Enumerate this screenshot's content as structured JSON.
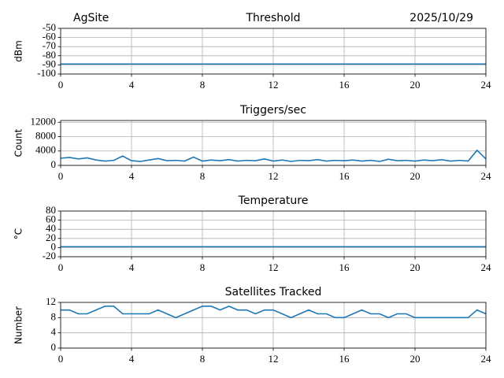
{
  "chart_data": [
    {
      "type": "line",
      "title": "Threshold",
      "left_title": "AgSite",
      "right_title": "2025/10/29",
      "ylabel": "dBm",
      "x": [
        0,
        1,
        2,
        3,
        4,
        5,
        6,
        7,
        8,
        9,
        10,
        11,
        12,
        13,
        14,
        15,
        16,
        17,
        18,
        19,
        20,
        21,
        22,
        23,
        24
      ],
      "series": [
        {
          "color": "#1f77b4",
          "values": [
            -89,
            -89,
            -89,
            -89,
            -89,
            -89,
            -89,
            -89,
            -89,
            -89,
            -89,
            -89,
            -89,
            -89,
            -89,
            -89,
            -89,
            -89,
            -89,
            -89,
            -89,
            -89,
            -89,
            -89,
            -89
          ]
        }
      ],
      "xlim": [
        0,
        24
      ],
      "xticks": [
        0,
        4,
        8,
        12,
        16,
        20,
        24
      ],
      "ylim": [
        -100,
        -50
      ],
      "yticks": [
        -100,
        -90,
        -80,
        -70,
        -60,
        -50
      ],
      "grid": true
    },
    {
      "type": "line",
      "title": "Triggers/sec",
      "ylabel": "Count",
      "x": [
        0,
        0.5,
        1,
        1.5,
        2,
        2.5,
        3,
        3.5,
        4,
        4.5,
        5,
        5.5,
        6,
        6.5,
        7,
        7.5,
        8,
        8.5,
        9,
        9.5,
        10,
        10.5,
        11,
        11.5,
        12,
        12.5,
        13,
        13.5,
        14,
        14.5,
        15,
        15.5,
        16,
        16.5,
        17,
        17.5,
        18,
        18.5,
        19,
        19.5,
        20,
        20.5,
        21,
        21.5,
        22,
        22.5,
        23,
        23.5,
        24
      ],
      "series": [
        {
          "color": "#1f77b4",
          "values": [
            2000,
            2200,
            1800,
            2100,
            1500,
            1200,
            1400,
            2600,
            1300,
            1100,
            1500,
            1900,
            1300,
            1400,
            1200,
            2300,
            1200,
            1500,
            1300,
            1600,
            1200,
            1400,
            1300,
            1800,
            1200,
            1500,
            1100,
            1400,
            1300,
            1600,
            1200,
            1400,
            1300,
            1500,
            1200,
            1400,
            1100,
            1700,
            1300,
            1400,
            1200,
            1500,
            1300,
            1600,
            1200,
            1400,
            1200,
            4200,
            1800
          ]
        }
      ],
      "xlim": [
        0,
        24
      ],
      "xticks": [
        0,
        4,
        8,
        12,
        16,
        20,
        24
      ],
      "ylim": [
        0,
        12500
      ],
      "yticks": [
        0,
        4000,
        8000,
        12000
      ],
      "grid": true
    },
    {
      "type": "line",
      "title": "Temperature",
      "ylabel": "°C",
      "x": [
        0,
        1,
        2,
        3,
        4,
        5,
        6,
        7,
        8,
        9,
        10,
        11,
        12,
        13,
        14,
        15,
        16,
        17,
        18,
        19,
        20,
        21,
        22,
        23,
        24
      ],
      "series": [
        {
          "color": "#1f77b4",
          "values": [
            2,
            2,
            2,
            2,
            2,
            2,
            2,
            2,
            2,
            2,
            2,
            2,
            2,
            2,
            2,
            2,
            2,
            2,
            2,
            2,
            2,
            2,
            2,
            2,
            2
          ]
        }
      ],
      "xlim": [
        0,
        24
      ],
      "xticks": [
        0,
        4,
        8,
        12,
        16,
        20,
        24
      ],
      "ylim": [
        -20,
        80
      ],
      "yticks": [
        -20,
        0,
        20,
        40,
        60,
        80
      ],
      "grid": true
    },
    {
      "type": "line",
      "title": "Satellites Tracked",
      "ylabel": "Number",
      "x": [
        0,
        0.5,
        1,
        1.5,
        2,
        2.5,
        3,
        3.5,
        4,
        4.5,
        5,
        5.5,
        6,
        6.5,
        7,
        7.5,
        8,
        8.5,
        9,
        9.5,
        10,
        10.5,
        11,
        11.5,
        12,
        12.5,
        13,
        13.5,
        14,
        14.5,
        15,
        15.5,
        16,
        16.5,
        17,
        17.5,
        18,
        18.5,
        19,
        19.5,
        20,
        20.5,
        21,
        21.5,
        22,
        22.5,
        23,
        23.5,
        24
      ],
      "series": [
        {
          "color": "#1f77b4",
          "values": [
            10,
            10,
            9,
            9,
            10,
            11,
            11,
            9,
            9,
            9,
            9,
            10,
            9,
            8,
            9,
            10,
            11,
            11,
            10,
            11,
            10,
            10,
            9,
            10,
            10,
            9,
            8,
            9,
            10,
            9,
            9,
            8,
            8,
            9,
            10,
            9,
            9,
            8,
            9,
            9,
            8,
            8,
            8,
            8,
            8,
            8,
            8,
            10,
            9
          ]
        }
      ],
      "xlim": [
        0,
        24
      ],
      "xticks": [
        0,
        4,
        8,
        12,
        16,
        20,
        24
      ],
      "ylim": [
        0,
        12
      ],
      "yticks": [
        0,
        4,
        8,
        12
      ],
      "grid": true
    }
  ]
}
